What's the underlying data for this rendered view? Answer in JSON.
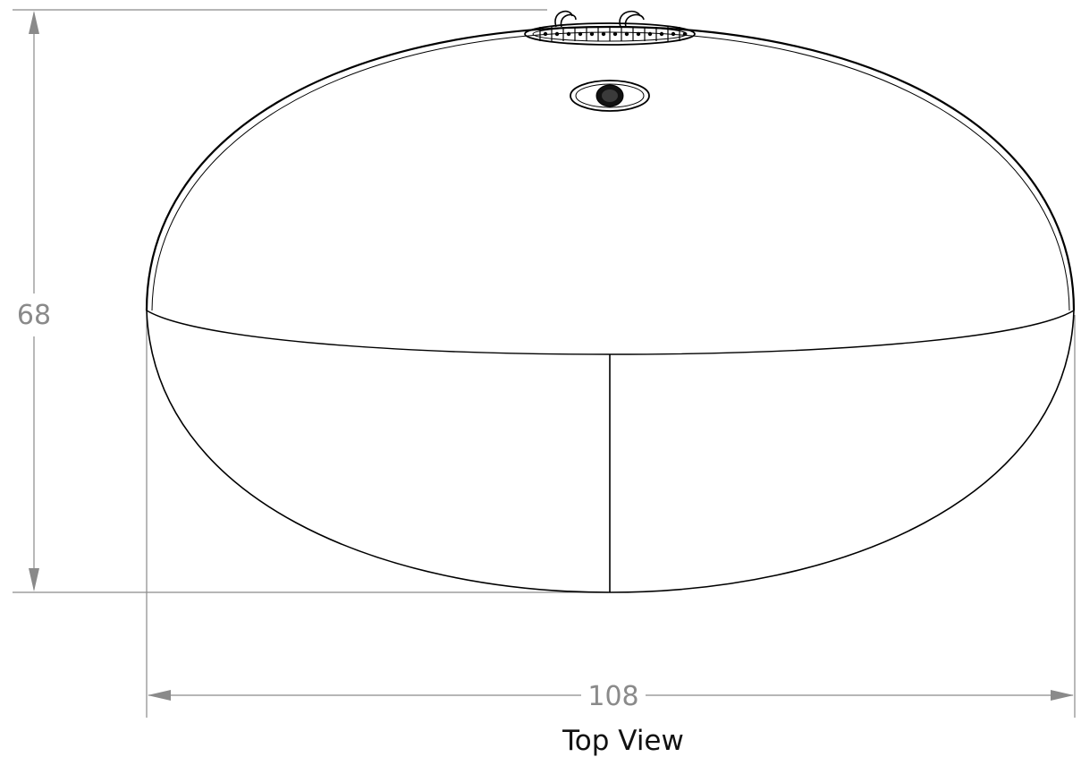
{
  "dimensions": {
    "height_value": "68",
    "width_value": "108"
  },
  "caption": "Top View",
  "colors": {
    "dimension": "#8a8a8a",
    "outline": "#000000",
    "background": "#ffffff"
  }
}
